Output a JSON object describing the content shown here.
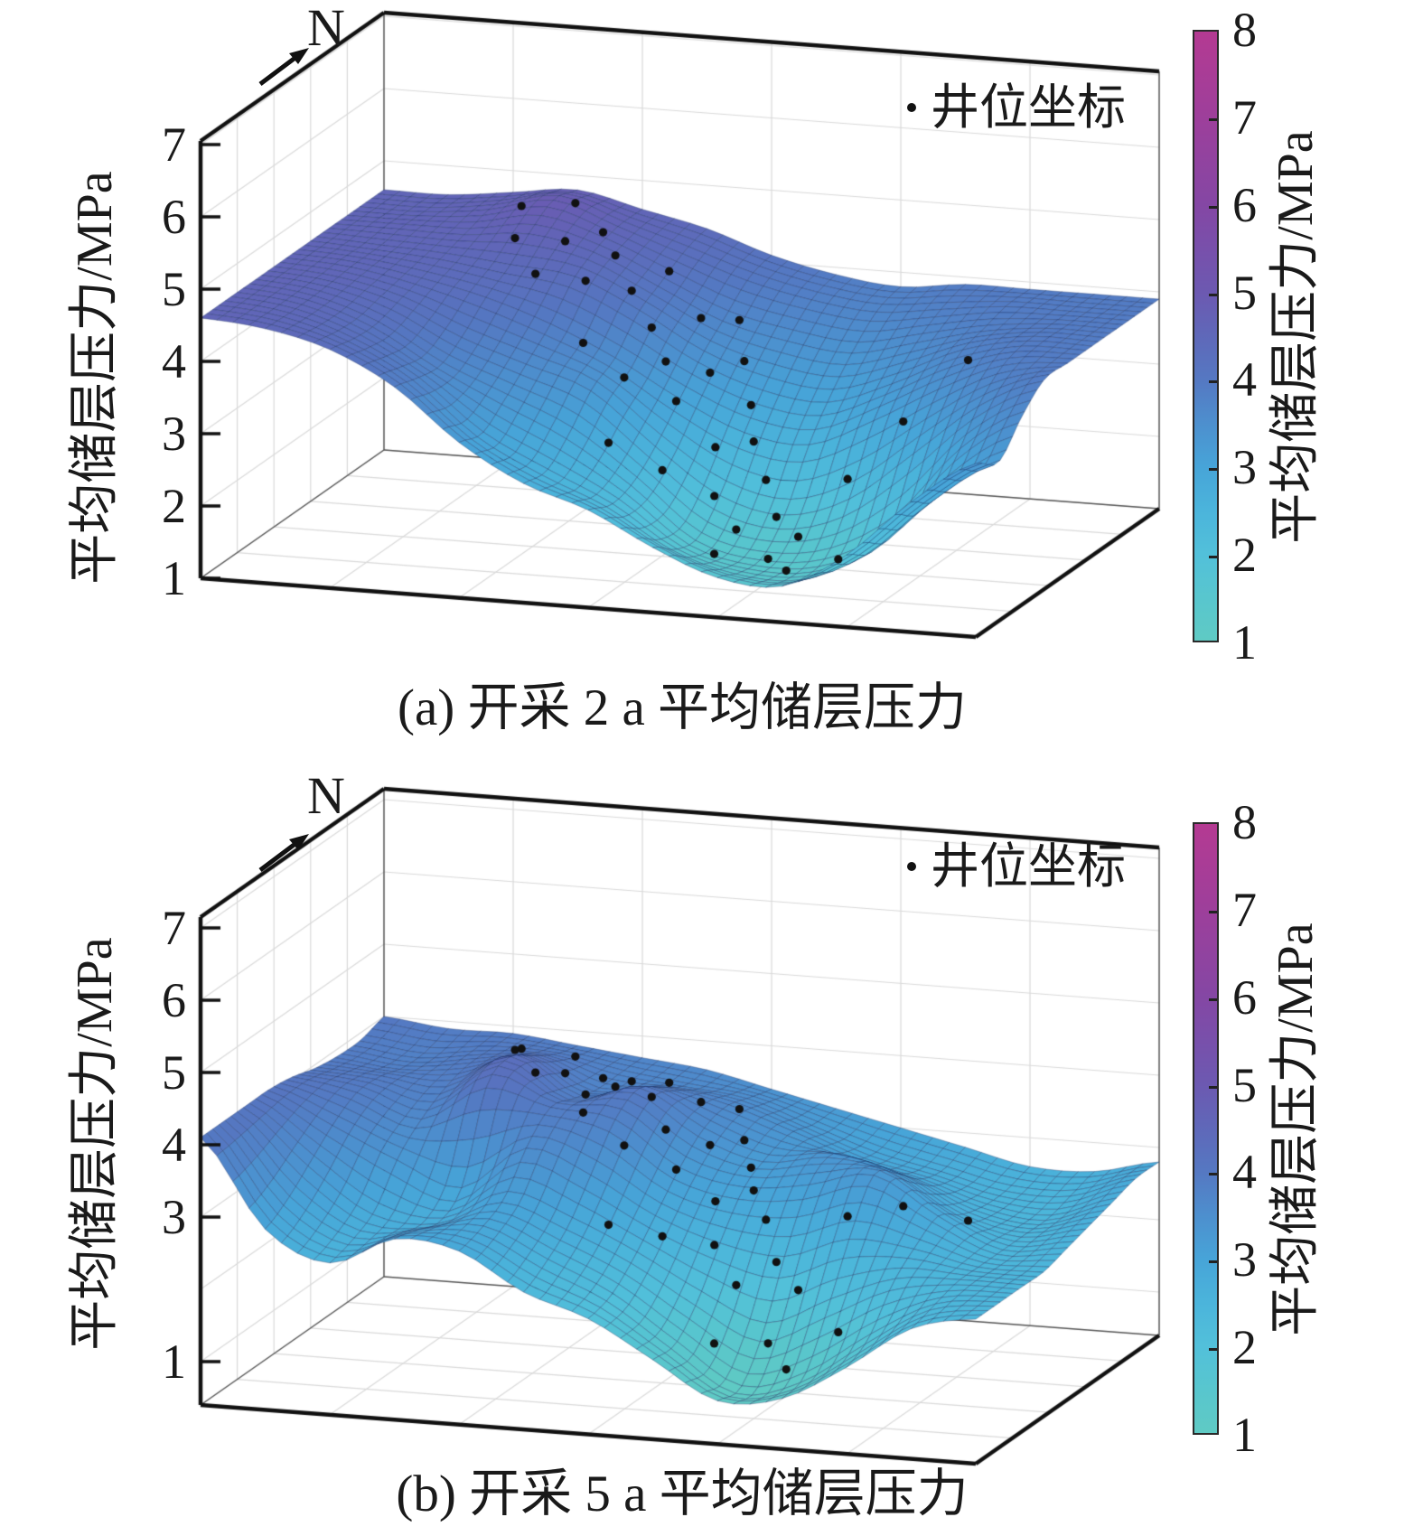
{
  "chart_data": {
    "type": "3d-surface",
    "title": "",
    "units": "MPa",
    "layout": {
      "legend_position": "top-right-inside",
      "grid": true,
      "colorbar_position": "right"
    },
    "panels": [
      {
        "id": "a",
        "caption": "(a) 开采 2 a 平均储层压力",
        "north_label": "N",
        "legend_marker": "·",
        "legend_label": "井位坐标",
        "z_axis_label": "平均储层压力/MPa",
        "z_ticks": [
          7,
          6,
          5,
          4,
          3,
          2,
          1
        ],
        "z_range_displayed": [
          1,
          7
        ],
        "colorbar_label": "平均储层压力/MPa",
        "colorbar_ticks": [
          8,
          7,
          6,
          5,
          4,
          3,
          2,
          1
        ],
        "colorbar_range": [
          1,
          8
        ],
        "surface_z_min": 1.4,
        "surface_z_max": 4.9,
        "surface_grid": [
          [
            4.6,
            4.52,
            4.3,
            3.85,
            3.15,
            2.65,
            2.35,
            1.9,
            1.55,
            1.5,
            2.0,
            2.8,
            3.4
          ],
          [
            4.6,
            4.5,
            4.22,
            3.75,
            3.05,
            2.6,
            2.2,
            1.65,
            1.4,
            1.4,
            1.8,
            2.6,
            3.2
          ],
          [
            4.6,
            4.5,
            4.2,
            3.7,
            3.3,
            2.9,
            2.3,
            1.6,
            1.4,
            1.5,
            2.0,
            3.0,
            3.6
          ],
          [
            4.6,
            4.52,
            4.3,
            3.9,
            3.6,
            3.3,
            2.6,
            2.0,
            1.8,
            2.1,
            2.8,
            3.5,
            3.9
          ],
          [
            4.6,
            4.55,
            4.4,
            4.2,
            3.9,
            3.5,
            3.0,
            2.6,
            2.5,
            2.9,
            3.4,
            3.8,
            3.9
          ],
          [
            4.6,
            4.55,
            4.5,
            4.4,
            4.3,
            3.9,
            3.4,
            3.1,
            3.0,
            3.3,
            3.7,
            3.9,
            3.9
          ],
          [
            4.6,
            4.6,
            4.6,
            4.7,
            4.5,
            4.1,
            3.7,
            3.5,
            3.4,
            3.6,
            3.8,
            3.9,
            3.9
          ],
          [
            4.6,
            4.6,
            4.7,
            4.9,
            4.6,
            4.3,
            4.0,
            3.8,
            3.7,
            3.8,
            3.9,
            3.9,
            3.9
          ],
          [
            4.6,
            4.6,
            4.7,
            4.8,
            4.6,
            4.4,
            4.1,
            3.9,
            3.8,
            3.9,
            3.9,
            3.9,
            3.9
          ]
        ]
      },
      {
        "id": "b",
        "caption": "(b) 开采 5 a 平均储层压力",
        "north_label": "N",
        "legend_marker": "·",
        "legend_label": "井位坐标",
        "z_axis_label": "平均储层压力/MPa",
        "z_ticks": [
          7,
          6,
          5,
          4,
          3,
          1
        ],
        "z_range_displayed": [
          1,
          7
        ],
        "colorbar_label": "平均储层压力/MPa",
        "colorbar_ticks": [
          8,
          7,
          6,
          5,
          4,
          3,
          2,
          1
        ],
        "colorbar_range": [
          1,
          8
        ],
        "surface_z_min": 0.95,
        "surface_z_max": 4.3,
        "surface_grid": [
          [
            4.1,
            2.9,
            2.5,
            2.9,
            2.8,
            2.3,
            2.0,
            1.5,
            1.0,
            1.1,
            1.6,
            2.2,
            2.4
          ],
          [
            4.1,
            3.1,
            2.6,
            2.8,
            2.9,
            2.5,
            2.1,
            1.5,
            0.95,
            1.2,
            1.8,
            2.3,
            2.4
          ],
          [
            4.1,
            3.4,
            2.8,
            2.7,
            3.1,
            2.8,
            2.4,
            1.9,
            1.5,
            1.9,
            2.3,
            2.4,
            2.4
          ],
          [
            4.1,
            3.7,
            3.3,
            3.0,
            3.6,
            3.3,
            2.8,
            2.5,
            2.4,
            2.7,
            2.6,
            2.4,
            2.4
          ],
          [
            4.05,
            3.9,
            3.6,
            4.1,
            3.9,
            3.8,
            3.2,
            3.0,
            3.1,
            3.3,
            2.8,
            2.4,
            2.5
          ],
          [
            3.95,
            3.9,
            3.8,
            4.3,
            3.8,
            4.0,
            3.5,
            3.2,
            3.3,
            3.1,
            2.6,
            2.4,
            2.6
          ],
          [
            3.9,
            3.8,
            3.9,
            4.1,
            3.7,
            3.8,
            3.6,
            3.3,
            3.0,
            2.8,
            2.5,
            2.4,
            2.7
          ],
          [
            3.9,
            3.8,
            3.9,
            3.9,
            3.7,
            3.6,
            3.5,
            3.2,
            2.9,
            2.7,
            2.5,
            2.5,
            2.8
          ],
          [
            4.0,
            3.9,
            3.9,
            3.8,
            3.7,
            3.6,
            3.4,
            3.2,
            3.0,
            2.8,
            2.6,
            2.6,
            2.8
          ]
        ]
      }
    ],
    "colormap_stops": [
      [
        1.0,
        "#5FCAC4"
      ],
      [
        1.5,
        "#58C6CE"
      ],
      [
        2.0,
        "#52C0DA"
      ],
      [
        2.5,
        "#4BB4DB"
      ],
      [
        3.0,
        "#47A4D8"
      ],
      [
        3.5,
        "#4D8FCE"
      ],
      [
        4.0,
        "#5578C2"
      ],
      [
        4.5,
        "#5F68B9"
      ],
      [
        5.0,
        "#6C59B1"
      ],
      [
        5.5,
        "#7850AB"
      ],
      [
        6.0,
        "#8447A4"
      ],
      [
        7.0,
        "#9D3F9B"
      ],
      [
        8.0,
        "#B43A92"
      ]
    ],
    "wells_uv": [
      [
        0.22,
        0.82
      ],
      [
        0.28,
        0.86
      ],
      [
        0.33,
        0.8
      ],
      [
        0.3,
        0.72
      ],
      [
        0.24,
        0.7
      ],
      [
        0.36,
        0.74
      ],
      [
        0.42,
        0.78
      ],
      [
        0.4,
        0.66
      ],
      [
        0.35,
        0.62
      ],
      [
        0.29,
        0.6
      ],
      [
        0.44,
        0.6
      ],
      [
        0.48,
        0.7
      ],
      [
        0.52,
        0.74
      ],
      [
        0.47,
        0.55
      ],
      [
        0.52,
        0.58
      ],
      [
        0.55,
        0.64
      ],
      [
        0.58,
        0.55
      ],
      [
        0.5,
        0.48
      ],
      [
        0.44,
        0.45
      ],
      [
        0.38,
        0.48
      ],
      [
        0.56,
        0.44
      ],
      [
        0.6,
        0.48
      ],
      [
        0.63,
        0.42
      ],
      [
        0.58,
        0.35
      ],
      [
        0.52,
        0.32
      ],
      [
        0.46,
        0.28
      ],
      [
        0.62,
        0.3
      ],
      [
        0.66,
        0.35
      ],
      [
        0.7,
        0.3
      ],
      [
        0.68,
        0.22
      ],
      [
        0.62,
        0.18
      ],
      [
        0.72,
        0.15
      ],
      [
        0.78,
        0.18
      ],
      [
        0.74,
        0.4
      ],
      [
        0.8,
        0.45
      ],
      [
        0.86,
        0.55
      ]
    ],
    "colors": {
      "mesh_line": "rgba(25,45,95,0.5)",
      "box_edge": "#111111",
      "wall_grid": "#d9d9d9",
      "well_marker": "#111111"
    }
  }
}
